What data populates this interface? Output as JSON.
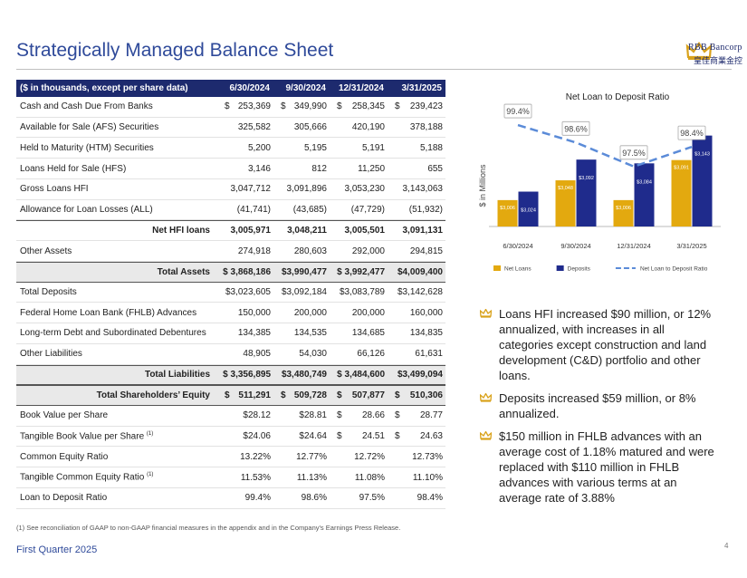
{
  "header": {
    "title": "Strategically Managed Balance Sheet",
    "logo": {
      "name": "RBB Bancorp",
      "chinese": "皇佳商業金控"
    }
  },
  "table": {
    "columns": [
      "($ in thousands, except per share data)",
      "6/30/2024",
      "9/30/2024",
      "12/31/2024",
      "3/31/2025"
    ],
    "rows": [
      {
        "label": "Cash and Cash Due From Banks",
        "cells": [
          [
            "$",
            "253,369"
          ],
          [
            "$",
            "349,990"
          ],
          [
            "$",
            "258,345"
          ],
          [
            "$",
            "239,423"
          ]
        ]
      },
      {
        "label": "Available for Sale (AFS) Securities",
        "cells": [
          "325,582",
          "305,666",
          "420,190",
          "378,188"
        ]
      },
      {
        "label": "Held to Maturity (HTM) Securities",
        "cells": [
          "5,200",
          "5,195",
          "5,191",
          "5,188"
        ]
      },
      {
        "label": "Loans Held for Sale (HFS)",
        "cells": [
          "3,146",
          "812",
          "11,250",
          "655"
        ]
      },
      {
        "label": "Gross Loans HFI",
        "cells": [
          "3,047,712",
          "3,091,896",
          "3,053,230",
          "3,143,063"
        ]
      },
      {
        "label": "Allowance for Loan Losses (ALL)",
        "cells": [
          "(41,741)",
          "(43,685)",
          "(47,729)",
          "(51,932)"
        ]
      },
      {
        "label": "Net HFI loans",
        "emphasis": "subtotal",
        "cells": [
          "3,005,971",
          "3,048,211",
          "3,005,501",
          "3,091,131"
        ]
      },
      {
        "label": "Other Assets",
        "cells": [
          "274,918",
          "280,603",
          "292,000",
          "294,815"
        ]
      },
      {
        "label": "Total Assets",
        "emphasis": "total",
        "cells": [
          "$ 3,868,186",
          "$3,990,477",
          "$ 3,992,477",
          "$4,009,400"
        ]
      },
      {
        "label": "Total Deposits",
        "cells": [
          "$3,023,605",
          "$3,092,184",
          "$3,083,789",
          "$3,142,628"
        ]
      },
      {
        "label": "Federal Home Loan Bank (FHLB) Advances",
        "cells": [
          "150,000",
          "200,000",
          "200,000",
          "160,000"
        ]
      },
      {
        "label": "Long-term Debt and Subordinated Debentures",
        "cells": [
          "134,385",
          "134,535",
          "134,685",
          "134,835"
        ]
      },
      {
        "label": "Other Liabilities",
        "cells": [
          "48,905",
          "54,030",
          "66,126",
          "61,631"
        ]
      },
      {
        "label": "Total Liabilities",
        "emphasis": "total",
        "cells": [
          "$ 3,356,895",
          "$3,480,749",
          "$ 3,484,600",
          "$3,499,094"
        ]
      },
      {
        "label": "Total Shareholders’ Equity",
        "emphasis": "total",
        "cells": [
          [
            "$",
            "511,291"
          ],
          [
            "$",
            "509,728"
          ],
          [
            "$",
            "507,877"
          ],
          [
            "$",
            "510,306"
          ]
        ]
      },
      {
        "label": "Book Value per Share",
        "cells": [
          "$28.12",
          "$28.81",
          [
            "$",
            "28.66"
          ],
          [
            "$",
            "28.77"
          ]
        ]
      },
      {
        "label": "Tangible Book Value per Share",
        "sup": "(1)",
        "cells": [
          "$24.06",
          "$24.64",
          [
            "$",
            "24.51"
          ],
          [
            "$",
            "24.63"
          ]
        ]
      },
      {
        "label": "Common Equity Ratio",
        "cells": [
          "13.22%",
          "12.77%",
          "12.72%",
          "12.73%"
        ]
      },
      {
        "label": "Tangible Common Equity Ratio",
        "sup": "(1)",
        "cells": [
          "11.53%",
          "11.13%",
          "11.08%",
          "11.10%"
        ]
      },
      {
        "label": "Loan to Deposit Ratio",
        "cells": [
          "99.4%",
          "98.6%",
          "97.5%",
          "98.4%"
        ]
      }
    ]
  },
  "chart_data": {
    "type": "bar",
    "title": "Net Loan to Deposit Ratio",
    "y_label": "$ in Millions",
    "categories": [
      "6/30/2024",
      "9/30/2024",
      "12/31/2024",
      "3/31/2025"
    ],
    "ylim": [
      2950,
      3200
    ],
    "y2lim": [
      94.75,
      100.15
    ],
    "series": [
      {
        "name": "Net Loans",
        "color": "#e3a90f",
        "values": [
          3006,
          3048,
          3006,
          3091
        ],
        "value_labels": [
          "$3,006",
          "$3,048",
          "$3,006",
          "$3,091"
        ]
      },
      {
        "name": "Deposits",
        "color": "#1f2b8c",
        "values": [
          3024,
          3092,
          3084,
          3143
        ],
        "value_labels": [
          "$3,024",
          "$3,092",
          "$3,084",
          "$3,143"
        ]
      },
      {
        "name": "Net Loan to Deposit Ratio",
        "type": "line",
        "axis": "y2",
        "color": "#5b8bd8",
        "values": [
          99.4,
          98.6,
          97.5,
          98.4
        ],
        "value_labels": [
          "99.4%",
          "98.6%",
          "97.5%",
          "98.4%"
        ]
      }
    ]
  },
  "bullets": [
    "Loans HFI increased $90 million, or 12% annualized, with increases in all categories except construction and land development (C&D) portfolio and other loans.",
    "Deposits increased $59 million, or 8% annualized.",
    "$150 million in FHLB advances with an average cost of 1.18% matured and were replaced with $110 million in FHLB advances with various terms at an average rate of 3.88%"
  ],
  "footnote": "(1) See reconciliation of GAAP to non-GAAP financial measures in the appendix and in the Company's Earnings Press Release.",
  "footer": {
    "text": "First Quarter 2025",
    "page": "4"
  }
}
